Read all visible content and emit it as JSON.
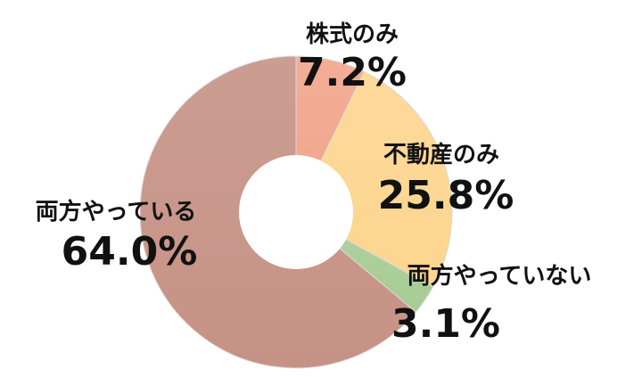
{
  "chart_data": {
    "type": "pie",
    "variant": "donut",
    "categories": [
      "株式のみ",
      "不動産のみ",
      "両方やっていない",
      "両方やっている"
    ],
    "values": [
      7.2,
      25.8,
      3.1,
      64.0
    ],
    "value_labels": [
      "7.2%",
      "25.8%",
      "3.1%",
      "64.0%"
    ],
    "colors": [
      "#F2A58C",
      "#FDD58F",
      "#A8CC95",
      "#C69285"
    ],
    "start_angle_deg": 0,
    "direction": "clockwise"
  }
}
